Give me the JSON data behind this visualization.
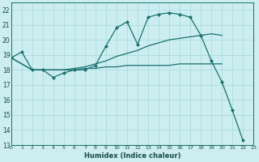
{
  "xlabel": "Humidex (Indice chaleur)",
  "bg_color": "#cceef0",
  "grid_color": "#aadddd",
  "line_color": "#1a7070",
  "xlim": [
    0,
    23
  ],
  "ylim": [
    13,
    22.5
  ],
  "xticks": [
    0,
    1,
    2,
    3,
    4,
    5,
    6,
    7,
    8,
    9,
    10,
    11,
    12,
    13,
    14,
    15,
    16,
    17,
    18,
    19,
    20,
    21,
    22,
    23
  ],
  "yticks": [
    13,
    14,
    15,
    16,
    17,
    18,
    19,
    20,
    21,
    22
  ],
  "line1_x": [
    0,
    1,
    2,
    3,
    4,
    5,
    6,
    7,
    8,
    9,
    10,
    11,
    12,
    13,
    14,
    15,
    16,
    17,
    18,
    19,
    20,
    21,
    22
  ],
  "line1_y": [
    18.8,
    19.2,
    18.0,
    18.0,
    17.5,
    17.8,
    18.0,
    18.0,
    18.3,
    19.6,
    20.8,
    21.2,
    19.7,
    21.5,
    21.7,
    21.8,
    21.7,
    21.5,
    20.3,
    18.6,
    17.2,
    15.3,
    13.3
  ],
  "line2_x": [
    0,
    2,
    3,
    4,
    5,
    6,
    7,
    8,
    9,
    10,
    11,
    12,
    13,
    14,
    15,
    16,
    17,
    18,
    19,
    20
  ],
  "line2_y": [
    18.8,
    18.0,
    18.0,
    18.0,
    18.0,
    18.1,
    18.2,
    18.4,
    18.6,
    18.9,
    19.1,
    19.3,
    19.6,
    19.8,
    20.0,
    20.1,
    20.2,
    20.3,
    20.4,
    20.3
  ],
  "line3_x": [
    0,
    2,
    3,
    4,
    5,
    6,
    7,
    8,
    9,
    10,
    11,
    12,
    13,
    14,
    15,
    16,
    17,
    18,
    19,
    20
  ],
  "line3_y": [
    18.8,
    18.0,
    18.0,
    18.0,
    18.0,
    18.0,
    18.1,
    18.1,
    18.2,
    18.2,
    18.3,
    18.3,
    18.3,
    18.3,
    18.3,
    18.4,
    18.4,
    18.4,
    18.4,
    18.4
  ]
}
